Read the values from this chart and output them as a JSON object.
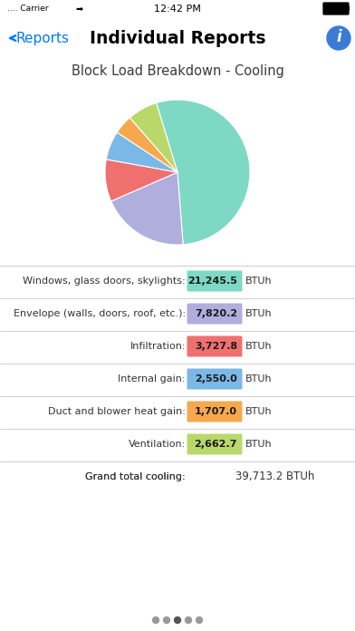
{
  "title_section": "Block Load Breakdown - Cooling",
  "nav_title": "Individual Reports",
  "nav_back": "< Reports",
  "status_bar": "12:42 PM",
  "pie_values": [
    21245.5,
    7820.2,
    3727.8,
    2550.0,
    1707.0,
    2662.7
  ],
  "pie_colors": [
    "#7dd9c3",
    "#b0aedd",
    "#f07070",
    "#7ab8e8",
    "#f5a84e",
    "#b8d96a"
  ],
  "table_rows": [
    {
      "label": "Windows, glass doors, skylights:",
      "value": "21,245.5",
      "color": "#7dd9c3"
    },
    {
      "label": "Envelope (walls, doors, roof, etc.):",
      "value": "7,820.2",
      "color": "#b0aedd"
    },
    {
      "label": "Infiltration:",
      "value": "3,727.8",
      "color": "#f07070"
    },
    {
      "label": "Internal gain:",
      "value": "2,550.0",
      "color": "#7ab8e8"
    },
    {
      "label": "Duct and blower heat gain:",
      "value": "1,707.0",
      "color": "#f5a84e"
    },
    {
      "label": "Ventilation:",
      "value": "2,662.7",
      "color": "#b8d96a"
    },
    {
      "label": "Grand total cooling:",
      "value": "39,713.2",
      "color": null
    }
  ],
  "bg_color": "#ffffff",
  "gray_bg": "#c7c7cc",
  "separator_color": "#c8c8cc",
  "title_bg": "#e5e5ea",
  "pie_startangle": 107,
  "fig_width": 3.92,
  "fig_height": 6.96,
  "dpi": 100
}
